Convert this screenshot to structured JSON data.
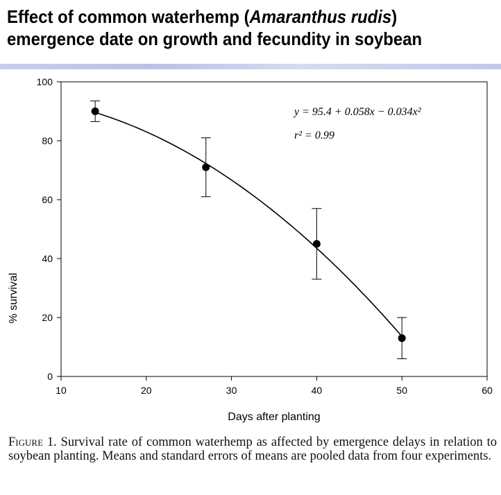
{
  "header": {
    "title_pre": "Effect of common waterhemp (",
    "title_italic": "Amaranthus rudis",
    "title_post": ")",
    "title_line2": "emergence date on growth and fecundity in soybean"
  },
  "chart_data": {
    "type": "scatter",
    "xlabel": "Days after planting",
    "ylabel": "% survival",
    "xlim": [
      10,
      60
    ],
    "ylim": [
      0,
      100
    ],
    "xticks": [
      10,
      20,
      30,
      40,
      50,
      60
    ],
    "yticks": [
      0,
      20,
      40,
      60,
      80,
      100
    ],
    "grid": false,
    "series": [
      {
        "x": [
          14,
          27,
          40,
          50
        ],
        "y": [
          90,
          71,
          45,
          13
        ],
        "err": [
          3.5,
          10,
          12,
          7
        ]
      }
    ],
    "fit": {
      "a": 95.4,
      "b": 0.058,
      "c": -0.034
    },
    "annotations": {
      "equation": "y = 95.4 + 0.058x − 0.034x²",
      "r2": "r² = 0.99"
    }
  },
  "caption": {
    "label": "Figure 1.",
    "text": " Survival rate of common waterhemp as affected by emergence delays in relation to soybean planting. Means and standard errors of means are pooled data from four experiments."
  },
  "colors": {
    "band": "#c2c9e6",
    "ink": "#000000"
  }
}
